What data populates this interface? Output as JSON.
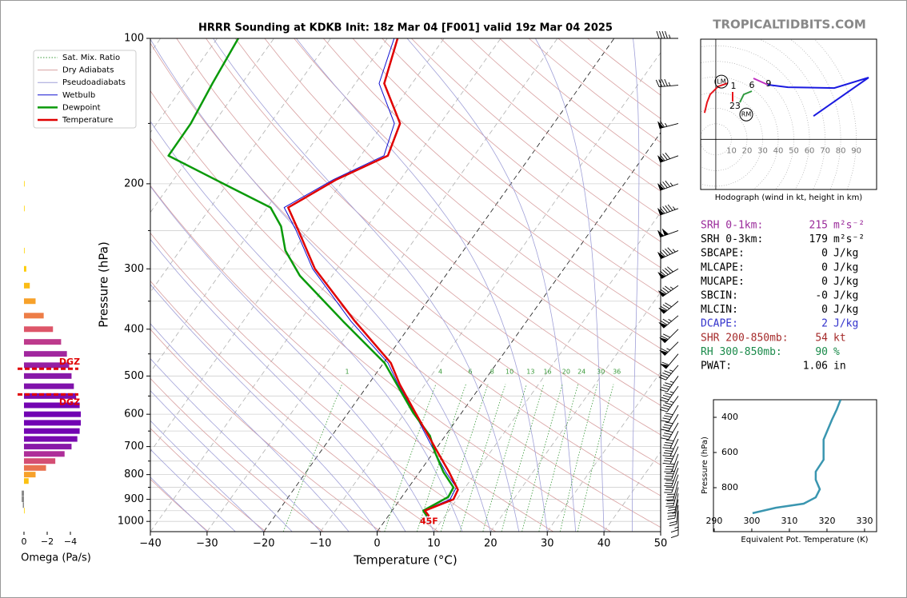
{
  "header": {
    "site": "TROPICALTIDBITS.COM"
  },
  "chart_data": [
    {
      "type": "skewt",
      "title": "HRRR Sounding at KDKB Init: 18z Mar 04 [F001] valid 19z Mar 04 2025",
      "xlabel": "Temperature (°C)",
      "ylabel": "Pressure (hPa)",
      "xlim": [
        -40,
        50
      ],
      "ylim": [
        1050,
        100
      ],
      "log_y": true,
      "xticks": [
        {
          "value": -40,
          "label": "−40"
        },
        {
          "value": -30,
          "label": "−30"
        },
        {
          "value": -20,
          "label": "−20"
        },
        {
          "value": -10,
          "label": "−10"
        },
        0,
        10,
        20,
        30,
        40,
        50
      ],
      "yticks": [
        100,
        200,
        300,
        400,
        500,
        600,
        700,
        800,
        900,
        1000
      ],
      "y_minor": [
        150,
        250,
        350,
        450,
        550,
        650,
        750,
        850,
        950
      ],
      "grid": true,
      "highlight_isotherms": [
        -20,
        0
      ],
      "legend": "upper left",
      "reference_lines": [
        {
          "name": "Sat. Mix. Ratio",
          "color": "#3a9a3a",
          "values": [
            1,
            4,
            6,
            8,
            10,
            13,
            16,
            20,
            24,
            30,
            36
          ]
        },
        {
          "name": "Dry Adiabats",
          "color": "#d8a0a0"
        },
        {
          "name": "Pseudoadiabats",
          "color": "#a0a0d8"
        }
      ],
      "series": [
        {
          "name": "Wetbulb",
          "color": "#1010d0",
          "pressure": [
            975,
            950,
            900,
            850,
            790,
            725,
            595,
            520,
            470,
            385,
            300,
            250,
            224,
            196,
            175,
            150,
            124,
            100
          ],
          "values": [
            6.9,
            5.6,
            8.8,
            8.4,
            4.6,
            0.6,
            -8.4,
            -14.8,
            -19.2,
            -31.0,
            -44.3,
            -52.0,
            -57.0,
            -51.8,
            -45.9,
            -48.1,
            -55.8,
            -58.8
          ]
        },
        {
          "name": "Dewpoint",
          "color": "#0a9a0a",
          "pressure": [
            975,
            950,
            890,
            850,
            790,
            720,
            665,
            595,
            520,
            470,
            385,
            310,
            275,
            245,
            224,
            204,
            175,
            150,
            124,
            100
          ],
          "values": [
            6.8,
            5.5,
            8.2,
            7.9,
            4.2,
            0.3,
            -2.7,
            -8.6,
            -15.0,
            -19.8,
            -32.4,
            -45.7,
            -51.4,
            -55.2,
            -59.4,
            -68.7,
            -83.9,
            -84.0,
            -85.2,
            -86.3
          ]
        },
        {
          "name": "Temperature",
          "color": "#e00000",
          "pressure": [
            975,
            950,
            900,
            860,
            790,
            725,
            595,
            520,
            470,
            385,
            300,
            250,
            224,
            196,
            175,
            150,
            124,
            100
          ],
          "values": [
            7.2,
            5.8,
            9.4,
            9.0,
            5.2,
            1.1,
            -8.2,
            -14.5,
            -18.7,
            -30.3,
            -43.9,
            -51.6,
            -56.3,
            -51.3,
            -45.2,
            -47.1,
            -54.9,
            -58.2
          ]
        }
      ],
      "surface_label": "45F",
      "wind": {
        "pressure": [
          100,
          125,
          150,
          175,
          200,
          225,
          250,
          275,
          300,
          325,
          350,
          375,
          400,
          425,
          450,
          475,
          500,
          525,
          550,
          575,
          600,
          625,
          650,
          675,
          700,
          725,
          750,
          775,
          800,
          825,
          850,
          875,
          900,
          925,
          950,
          975
        ],
        "direction": [
          270,
          265,
          255,
          250,
          250,
          250,
          250,
          245,
          240,
          235,
          230,
          230,
          225,
          225,
          220,
          220,
          215,
          215,
          215,
          210,
          210,
          210,
          205,
          205,
          205,
          200,
          200,
          200,
          200,
          195,
          195,
          190,
          190,
          185,
          180,
          180
        ],
        "speed": [
          45,
          45,
          65,
          80,
          85,
          95,
          100,
          95,
          90,
          85,
          80,
          75,
          70,
          65,
          60,
          45,
          45,
          45,
          45,
          40,
          40,
          40,
          40,
          35,
          35,
          35,
          35,
          30,
          30,
          30,
          30,
          30,
          25,
          20,
          15,
          10
        ]
      }
    },
    {
      "type": "omega_bar",
      "xlabel": "Omega (Pa/s)",
      "xlim": [
        0.55,
        -5.0
      ],
      "ylim": [
        1050,
        100
      ],
      "xticks": [
        0,
        {
          "value": -2,
          "label": "−2"
        },
        {
          "value": -4,
          "label": "−4"
        }
      ],
      "pressure": [
        200,
        225,
        275,
        300,
        325,
        350,
        375,
        400,
        425,
        450,
        475,
        500,
        525,
        550,
        575,
        600,
        625,
        650,
        675,
        700,
        725,
        750,
        775,
        800,
        825,
        875,
        900,
        925,
        950
      ],
      "values": [
        -0.05,
        -0.05,
        -0.05,
        -0.2,
        -0.5,
        -1.0,
        -1.7,
        -2.5,
        -3.2,
        -3.7,
        -3.9,
        -4.1,
        -4.3,
        -4.5,
        -4.8,
        -4.9,
        -4.9,
        -4.8,
        -4.6,
        -4.1,
        -3.5,
        -2.7,
        -1.9,
        -1.0,
        -0.4,
        0.2,
        0.2,
        0.1,
        -0.05
      ],
      "dgz": {
        "label": "DGZ",
        "color": "#e00000",
        "pressures": [
          483,
          546
        ]
      }
    },
    {
      "type": "hodograph",
      "caption": "Hodograph (wind in kt, height in km)",
      "xlim": [
        -9.7,
        103
      ],
      "ylim": [
        -32,
        64
      ],
      "rings": [
        10,
        20,
        30,
        40,
        50,
        60,
        70,
        80,
        90
      ],
      "segments": [
        {
          "color": "#e8141c",
          "u": [
            -7.2,
            -5.6,
            -3.6,
            1.5,
            7.7
          ],
          "v": [
            16.9,
            23.6,
            28.7,
            33.8,
            35.9
          ]
        },
        {
          "color": "#e8141c",
          "u": [
            10.8,
            10.8
          ],
          "v": [
            24.1,
            30.3
          ]
        },
        {
          "color": "#2e9a3e",
          "u": [
            15.4,
            17.9,
            23.1
          ],
          "v": [
            23.6,
            28.7,
            30.8
          ]
        },
        {
          "color": "#c030c0",
          "u": [
            24.1,
            33.3
          ],
          "v": [
            39.0,
            34.9
          ]
        },
        {
          "color": "#1a1ae0",
          "u": [
            33.3,
            46.2,
            75.9,
            97.9,
            62.6
          ],
          "v": [
            34.9,
            33.3,
            32.8,
            39.5,
            14.9
          ]
        }
      ],
      "height_labels": [
        {
          "text": "1",
          "u": 11.3,
          "v": 33.8
        },
        {
          "text": "6",
          "u": 23.1,
          "v": 34.4
        },
        {
          "text": "9",
          "u": 33.8,
          "v": 35.4
        },
        {
          "text": "23",
          "u": 12.3,
          "v": 21.0
        }
      ],
      "storm_motion": [
        {
          "label": "LM",
          "u": 3.6,
          "v": 36.9
        },
        {
          "label": "RM",
          "u": 19.5,
          "v": 15.9
        }
      ]
    },
    {
      "type": "profile",
      "xlabel": "Equivalent Pot. Temperature (K)",
      "ylabel": "Pressure (hPa)",
      "xlim": [
        289.8,
        333.2
      ],
      "ylim": [
        1050,
        300
      ],
      "xticks": [
        290,
        300,
        310,
        320,
        330
      ],
      "yticks": [
        400,
        600,
        800
      ],
      "color": "#3a96b0",
      "pressure": [
        945,
        914,
        891,
        855,
        809,
        755,
        709,
        641,
        527,
        414,
        355,
        300
      ],
      "values": [
        300.2,
        306.4,
        313.8,
        317.0,
        318.1,
        317.0,
        317.0,
        319.1,
        319.1,
        321.3,
        322.6,
        323.6
      ]
    }
  ],
  "indices": [
    {
      "label": "SRH 0-1km:",
      "value": "215",
      "unit": "m²s⁻²",
      "color": "#9a2a9a"
    },
    {
      "label": "SRH 0-3km:",
      "value": "179",
      "unit": "m²s⁻²",
      "color": "#000000"
    },
    {
      "label": "SBCAPE:",
      "value": "0",
      "unit": "J/kg",
      "color": "#000000"
    },
    {
      "label": "MLCAPE:",
      "value": "0",
      "unit": "J/kg",
      "color": "#000000"
    },
    {
      "label": "MUCAPE:",
      "value": "0",
      "unit": "J/kg",
      "color": "#000000"
    },
    {
      "label": "SBCIN:",
      "value": "-0",
      "unit": "J/kg",
      "color": "#000000"
    },
    {
      "label": "MLCIN:",
      "value": "0",
      "unit": "J/kg",
      "color": "#000000"
    },
    {
      "label": "DCAPE:",
      "value": "2",
      "unit": "J/kg",
      "color": "#3333cc"
    },
    {
      "label": "SHR 200-850mb:",
      "value": "54",
      "unit": "kt",
      "color": "#a52a2a"
    },
    {
      "label": "RH 300-850mb:",
      "value": "90",
      "unit": "%",
      "color": "#1a8a4a"
    },
    {
      "label": "PWAT:",
      "value": "1.06",
      "unit": "in",
      "color": "#000000"
    }
  ]
}
